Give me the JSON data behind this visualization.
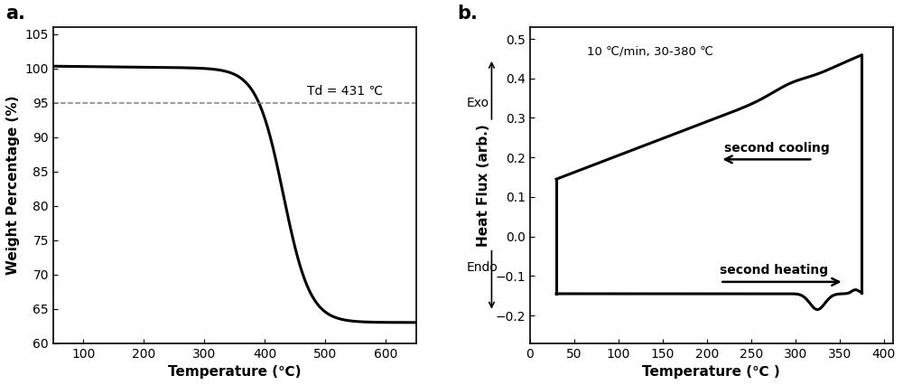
{
  "fig_width": 10.0,
  "fig_height": 4.26,
  "dpi": 100,
  "panel_a": {
    "label": "a.",
    "xlabel": "Temperature (℃)",
    "ylabel": "Weight Percentage (%)",
    "xlim": [
      50,
      650
    ],
    "ylim": [
      60,
      106
    ],
    "xticks": [
      100,
      200,
      300,
      400,
      500,
      600
    ],
    "yticks": [
      60,
      65,
      70,
      75,
      80,
      85,
      90,
      95,
      100,
      105
    ],
    "dashed_y": 95,
    "td_text": "Td = 431 ℃",
    "td_x": 470,
    "td_y": 96.2
  },
  "panel_b": {
    "label": "b.",
    "xlabel": "Temperature (℃ )",
    "ylabel": "Heat Flux (arb.)",
    "xlim": [
      0,
      410
    ],
    "ylim": [
      -0.27,
      0.53
    ],
    "xticks": [
      0,
      50,
      100,
      150,
      200,
      250,
      300,
      350,
      400
    ],
    "yticks": [
      -0.2,
      -0.1,
      0.0,
      0.1,
      0.2,
      0.3,
      0.4,
      0.5
    ],
    "annotation_text": "10 ℃/min, 30-380 ℃",
    "exo_label": "Exo",
    "endo_label": "Endo",
    "cooling_label": "second cooling",
    "heating_label": "second heating"
  }
}
